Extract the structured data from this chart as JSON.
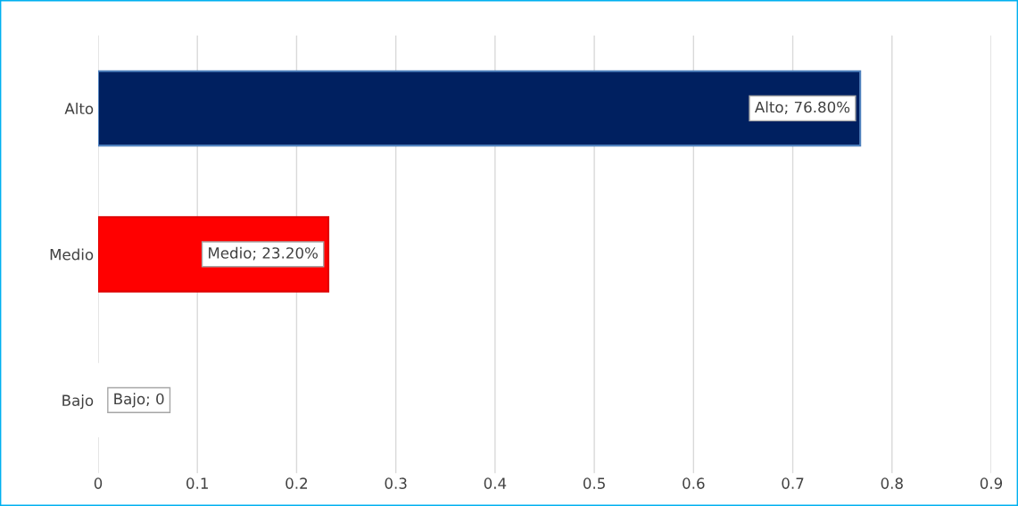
{
  "chart_data": {
    "type": "bar",
    "orientation": "horizontal",
    "categories": [
      "Alto",
      "Medio",
      "Bajo"
    ],
    "values": [
      0.768,
      0.232,
      0
    ],
    "colors": [
      "#002060",
      "#ff0000",
      "#ffffff"
    ],
    "value_labels": [
      "Alto; 76.80%",
      "Medio; 23.20%",
      "Bajo; 0"
    ],
    "xlim": [
      0,
      0.9
    ],
    "xticks": [
      0,
      0.1,
      0.2,
      0.3,
      0.4,
      0.5,
      0.6,
      0.7,
      0.8,
      0.9
    ],
    "grid": "x",
    "legend": false
  }
}
